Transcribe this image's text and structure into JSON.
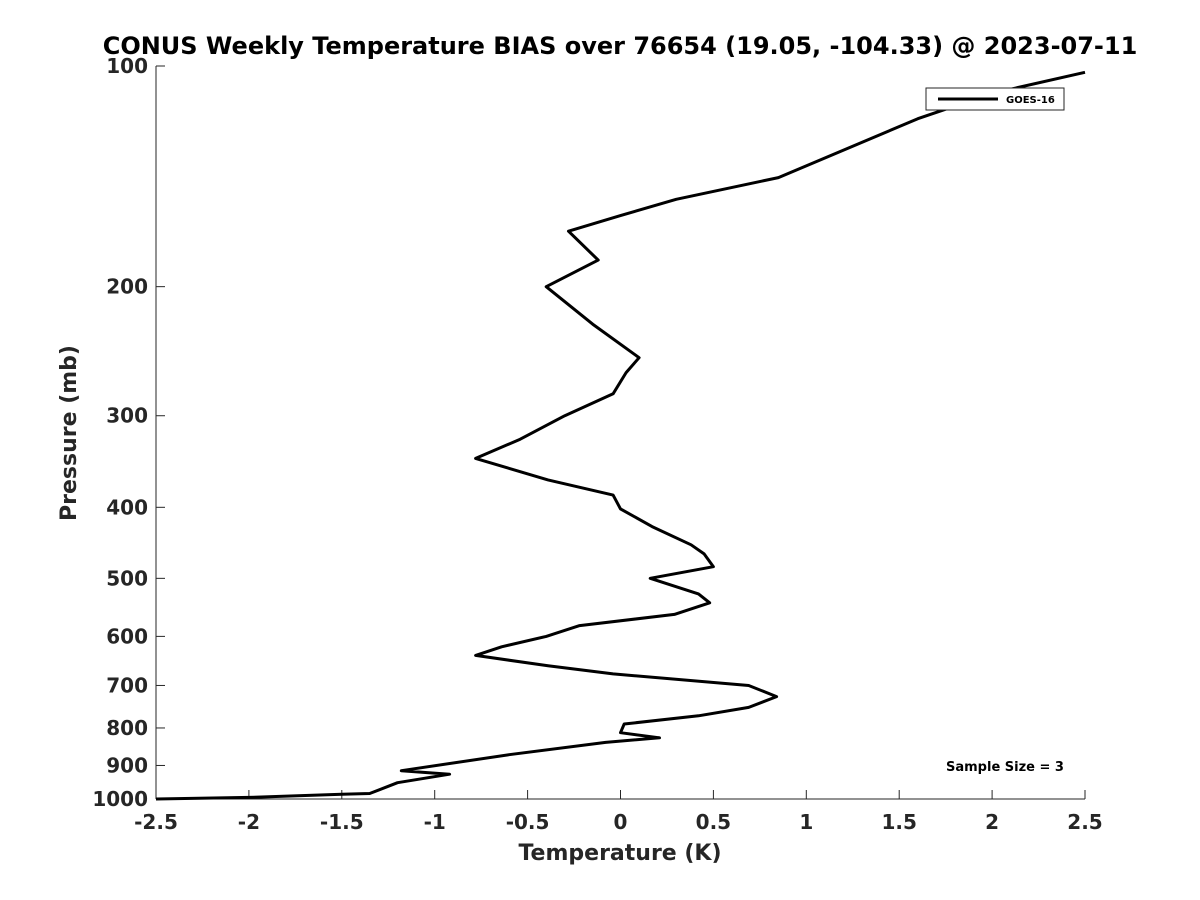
{
  "chart_data": {
    "type": "line",
    "title": "CONUS Weekly Temperature BIAS over 76654 (19.05, -104.33) @ 2023-07-11",
    "xlabel": "Temperature (K)",
    "ylabel": "Pressure (mb)",
    "xlim": [
      -2.5,
      2.5
    ],
    "ylim": [
      1000,
      100
    ],
    "yscale": "log",
    "y_reversed": true,
    "grid": false,
    "legend_position": "top-right",
    "x_ticks": [
      -2.5,
      -2,
      -1.5,
      -1,
      -0.5,
      0,
      0.5,
      1,
      1.5,
      2,
      2.5
    ],
    "x_tick_labels": [
      "-2.5",
      "-2",
      "-1.5",
      "-1",
      "-0.5",
      "0",
      "0.5",
      "1",
      "1.5",
      "2",
      "2.5"
    ],
    "y_ticks": [
      100,
      200,
      300,
      400,
      500,
      600,
      700,
      800,
      900,
      1000
    ],
    "y_tick_labels": [
      "100",
      "200",
      "300",
      "400",
      "500",
      "600",
      "700",
      "800",
      "900",
      "1000"
    ],
    "series": [
      {
        "name": "GOES-16",
        "color": "#000000",
        "points": [
          {
            "x": -2.5,
            "p": 1000
          },
          {
            "x": -2.0,
            "p": 995
          },
          {
            "x": -1.5,
            "p": 985
          },
          {
            "x": -1.35,
            "p": 983
          },
          {
            "x": -1.2,
            "p": 950
          },
          {
            "x": -0.92,
            "p": 925
          },
          {
            "x": -1.18,
            "p": 915
          },
          {
            "x": -0.6,
            "p": 870
          },
          {
            "x": -0.08,
            "p": 837
          },
          {
            "x": 0.21,
            "p": 825
          },
          {
            "x": 0.0,
            "p": 812
          },
          {
            "x": 0.02,
            "p": 790
          },
          {
            "x": 0.42,
            "p": 770
          },
          {
            "x": 0.69,
            "p": 750
          },
          {
            "x": 0.84,
            "p": 725
          },
          {
            "x": 0.69,
            "p": 700
          },
          {
            "x": -0.04,
            "p": 675
          },
          {
            "x": -0.39,
            "p": 658
          },
          {
            "x": -0.78,
            "p": 637
          },
          {
            "x": -0.64,
            "p": 620
          },
          {
            "x": -0.4,
            "p": 600
          },
          {
            "x": -0.22,
            "p": 580
          },
          {
            "x": 0.29,
            "p": 560
          },
          {
            "x": 0.48,
            "p": 540
          },
          {
            "x": 0.42,
            "p": 525
          },
          {
            "x": 0.16,
            "p": 500
          },
          {
            "x": 0.5,
            "p": 482
          },
          {
            "x": 0.45,
            "p": 463
          },
          {
            "x": 0.38,
            "p": 450
          },
          {
            "x": 0.17,
            "p": 425
          },
          {
            "x": 0.0,
            "p": 402
          },
          {
            "x": -0.04,
            "p": 385
          },
          {
            "x": -0.39,
            "p": 367
          },
          {
            "x": -0.78,
            "p": 343
          },
          {
            "x": -0.54,
            "p": 323
          },
          {
            "x": -0.3,
            "p": 300
          },
          {
            "x": -0.04,
            "p": 280
          },
          {
            "x": 0.03,
            "p": 262
          },
          {
            "x": 0.1,
            "p": 250
          },
          {
            "x": -0.15,
            "p": 225
          },
          {
            "x": -0.4,
            "p": 200
          },
          {
            "x": -0.12,
            "p": 184
          },
          {
            "x": -0.28,
            "p": 168
          },
          {
            "x": 0.0,
            "p": 160
          },
          {
            "x": 0.3,
            "p": 152
          },
          {
            "x": 0.85,
            "p": 142
          },
          {
            "x": 1.6,
            "p": 118
          },
          {
            "x": 2.0,
            "p": 109
          },
          {
            "x": 2.5,
            "p": 102
          }
        ]
      }
    ],
    "annotation": "Sample Size = 3"
  }
}
